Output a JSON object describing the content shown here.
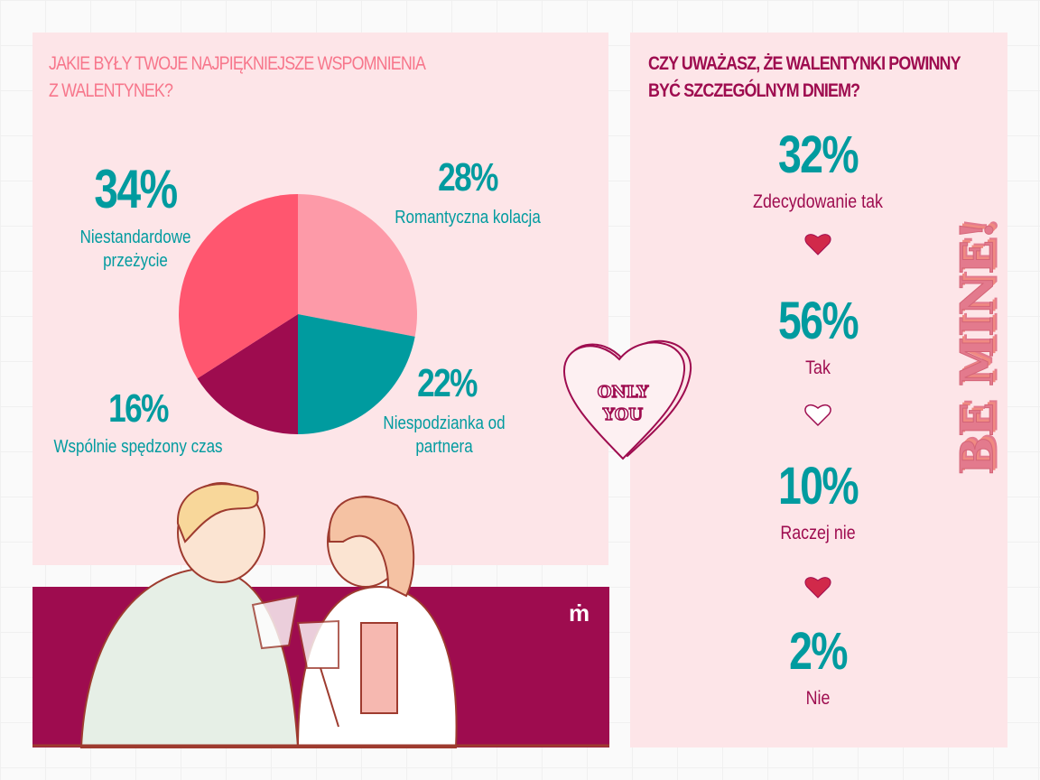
{
  "left_panel": {
    "title_line1": "JAKIE BYŁY TWOJE NAJPIĘKNIEJSZE WSPOMNIENIA",
    "title_line2": "Z WALENTYNEK?"
  },
  "chart_data": [
    {
      "type": "pie",
      "title": "JAKIE BYŁY TWOJE NAJPIĘKNIEJSZE WSPOMNIENIA Z WALENTYNEK?",
      "slices": [
        {
          "label": "Romantyczna kolacja",
          "value": 28,
          "display": "28%",
          "color": "#fd9aa8"
        },
        {
          "label": "Niespodzianka od partnera",
          "value": 22,
          "display": "22%",
          "color": "#009b9f"
        },
        {
          "label": "Wspólnie spędzony czas",
          "value": 16,
          "display": "16%",
          "color": "#9e0c4f"
        },
        {
          "label": "Niestandardowe przeżycie",
          "value": 34,
          "display": "34%",
          "color": "#ff566f"
        }
      ]
    },
    {
      "type": "table",
      "title": "CZY UWAŻASZ, ŻE WALENTYNKI POWINNY BYĆ SZCZEGÓLNYM DNIEM?",
      "rows": [
        {
          "label": "Zdecydowanie tak",
          "value": 32,
          "display": "32%"
        },
        {
          "label": "Tak",
          "value": 56,
          "display": "56%"
        },
        {
          "label": "Raczej nie",
          "value": 10,
          "display": "10%"
        },
        {
          "label": "Nie",
          "value": 2,
          "display": "2%"
        }
      ]
    }
  ],
  "labels": {
    "niest_line1": "Niestandardowe",
    "niest_line2": "przeżycie",
    "niesp_line1": "Niespodzianka od",
    "niesp_line2": "partnera"
  },
  "right_panel": {
    "title_line1": "CZY UWAŻASZ, ŻE WALENTYNKI POWINNY",
    "title_line2": "BYĆ SZCZEGÓLNYM DNIEM?"
  },
  "stickers": {
    "heart_text_line1": "ONLY",
    "heart_text_line2": "YOU",
    "vertical_text": "BE MINE!"
  },
  "colors": {
    "panel": "#fde5e8",
    "teal": "#009b9f",
    "magenta": "#9e0c4f",
    "coral": "#ff566f",
    "light_pink": "#fd9aa8",
    "title_pink": "#f7768b",
    "heart_red": "#d1294a"
  }
}
